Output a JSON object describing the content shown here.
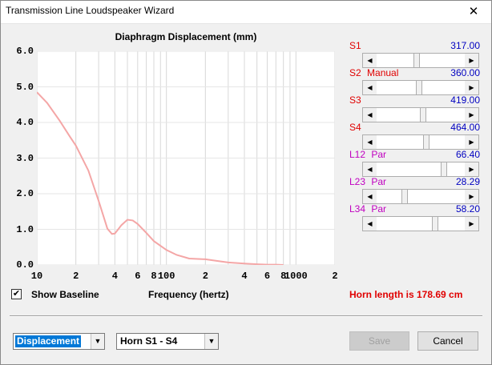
{
  "window": {
    "title": "Transmission Line Loudspeaker Wizard",
    "close_glyph": "✕"
  },
  "chart_data": {
    "type": "line",
    "title": "Diaphragm Displacement (mm)",
    "xlabel": "Frequency (hertz)",
    "ylabel": "",
    "x_scale": "log",
    "xlim": [
      10,
      2000
    ],
    "ylim": [
      0,
      6
    ],
    "grid": true,
    "y_ticks": [
      "6.0",
      "5.0",
      "4.0",
      "3.0",
      "2.0",
      "1.0",
      "0.0"
    ],
    "x_ticks": [
      {
        "value": 10,
        "label": "10"
      },
      {
        "value": 20,
        "label": "2"
      },
      {
        "value": 40,
        "label": "4"
      },
      {
        "value": 60,
        "label": "6"
      },
      {
        "value": 80,
        "label": "8"
      },
      {
        "value": 100,
        "label": "100"
      },
      {
        "value": 200,
        "label": "2"
      },
      {
        "value": 400,
        "label": "4"
      },
      {
        "value": 600,
        "label": "6"
      },
      {
        "value": 800,
        "label": "8"
      },
      {
        "value": 1000,
        "label": "1000"
      },
      {
        "value": 2000,
        "label": "2"
      }
    ],
    "series": [
      {
        "color": "#f4a6a6",
        "x": [
          10,
          12,
          15,
          18,
          20,
          25,
          30,
          35,
          38,
          40,
          42,
          45,
          50,
          55,
          60,
          70,
          80,
          100,
          120,
          150,
          200,
          250,
          300,
          400,
          500,
          600,
          700,
          800
        ],
        "y": [
          4.85,
          4.55,
          4.05,
          3.6,
          3.35,
          2.65,
          1.8,
          1.02,
          0.87,
          0.88,
          0.98,
          1.12,
          1.27,
          1.25,
          1.15,
          0.9,
          0.67,
          0.42,
          0.28,
          0.18,
          0.16,
          0.11,
          0.07,
          0.04,
          0.02,
          0.01,
          0.01,
          0.0
        ]
      }
    ]
  },
  "sliders": [
    {
      "name": "S1",
      "label": "S1",
      "extra": "",
      "label_color": "#e00000",
      "value": "317.00",
      "position": 0.45
    },
    {
      "name": "S2",
      "label": "S2",
      "extra": "Manual",
      "label_color": "#e00000",
      "value": "360.00",
      "position": 0.48
    },
    {
      "name": "S3",
      "label": "S3",
      "extra": "",
      "label_color": "#e00000",
      "value": "419.00",
      "position": 0.53
    },
    {
      "name": "S4",
      "label": "S4",
      "extra": "",
      "label_color": "#e00000",
      "value": "464.00",
      "position": 0.57
    },
    {
      "name": "L12",
      "label": "L12",
      "extra": "Par",
      "label_color": "#c000c0",
      "value": "66.40",
      "position": 0.78
    },
    {
      "name": "L23",
      "label": "L23",
      "extra": "Par",
      "label_color": "#c000c0",
      "value": "28.29",
      "position": 0.3
    },
    {
      "name": "L34",
      "label": "L34",
      "extra": "Par",
      "label_color": "#c000c0",
      "value": "58.20",
      "position": 0.68
    }
  ],
  "controls": {
    "show_baseline_label": "Show Baseline",
    "show_baseline_checked": "✔",
    "frequency_label": "Frequency (hertz)",
    "horn_length": "Horn length is 178.69 cm",
    "plot_select": "Displacement",
    "horn_select": "Horn S1 - S4",
    "save_label": "Save",
    "cancel_label": "Cancel",
    "dropdown_glyph": "▼",
    "arrow_left": "◀",
    "arrow_right": "▶"
  }
}
